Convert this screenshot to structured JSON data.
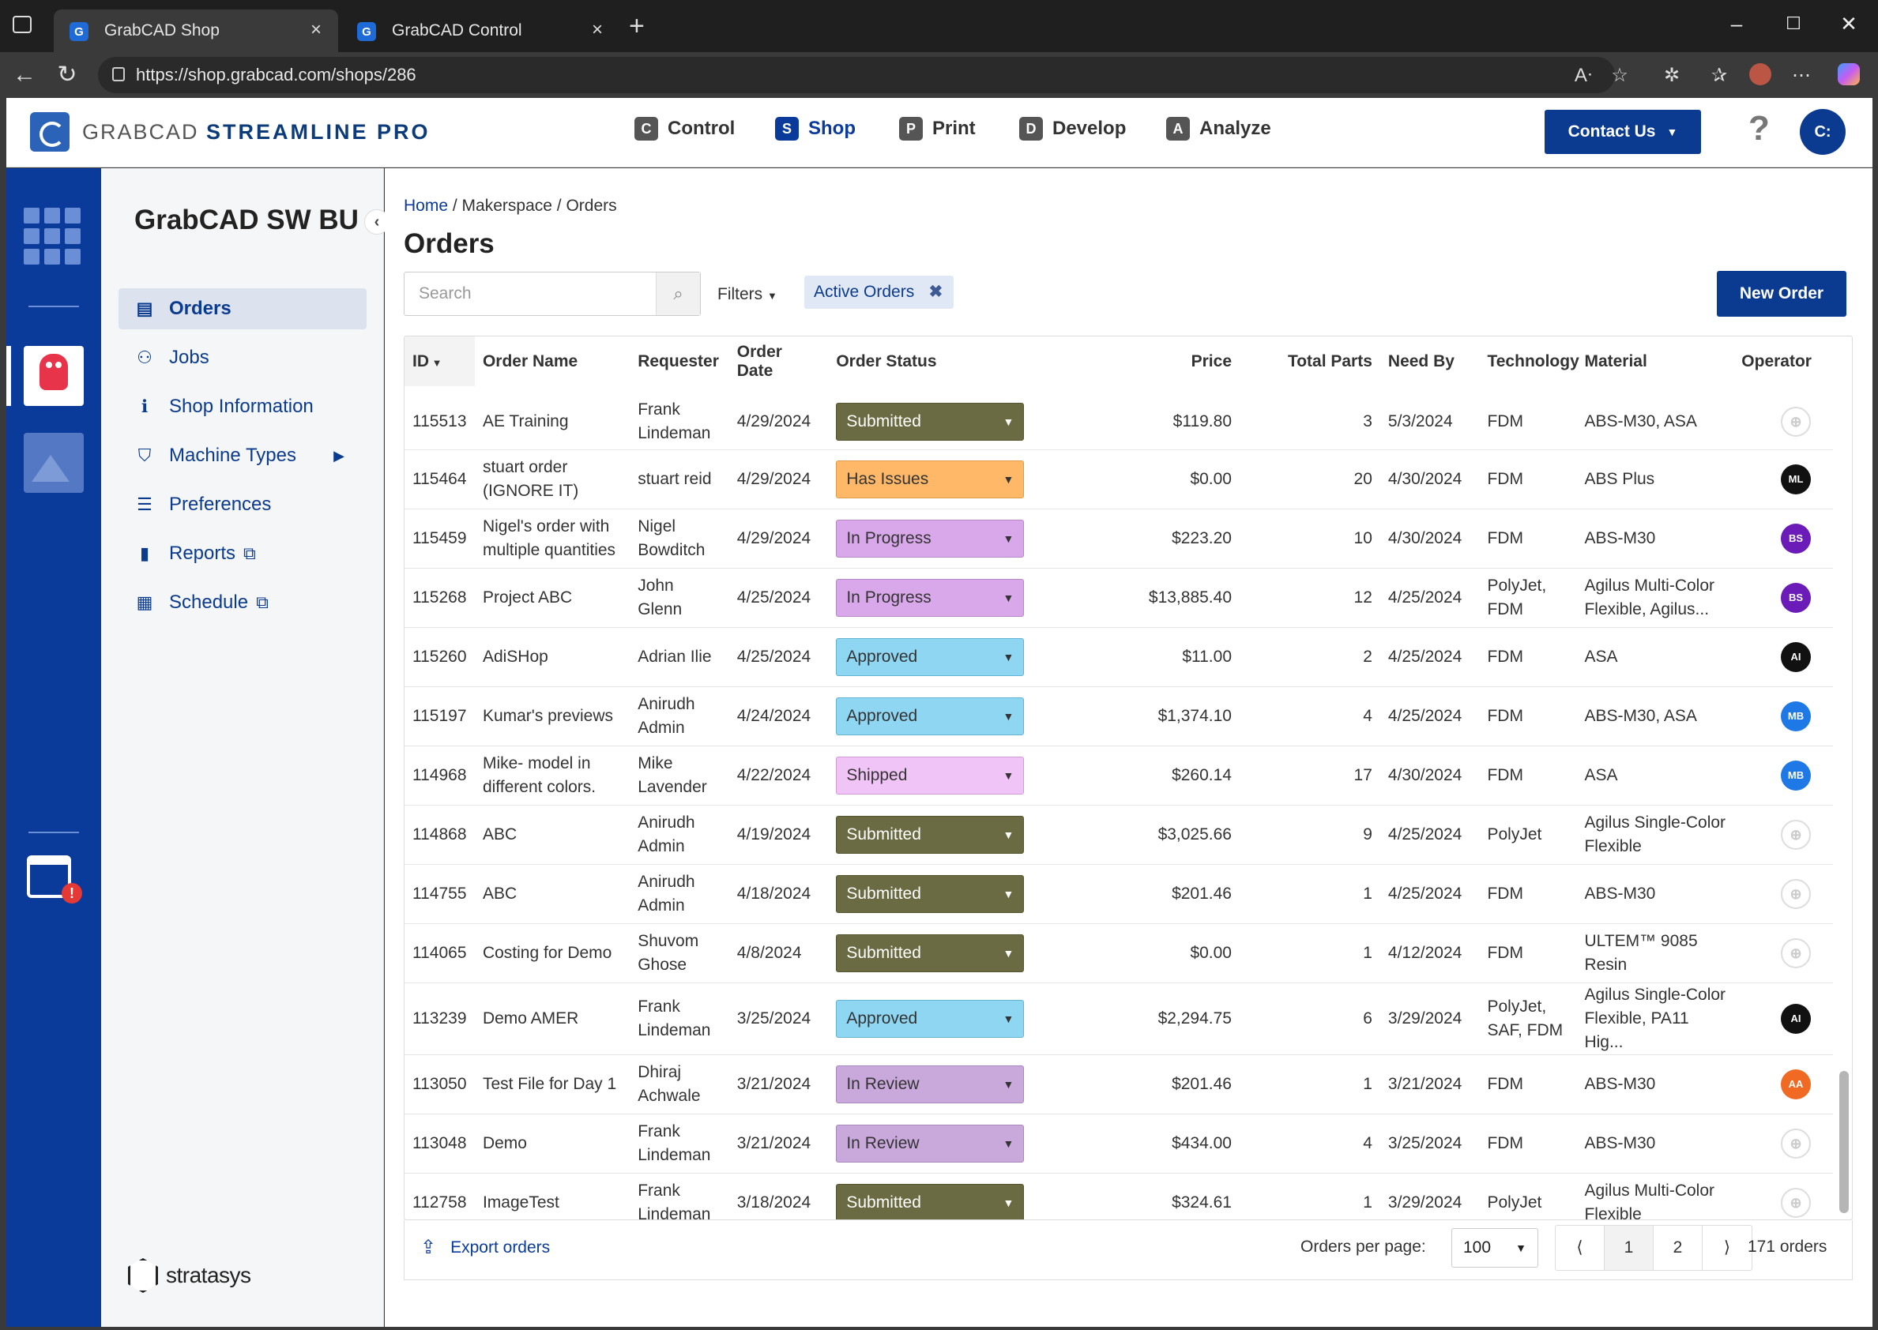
{
  "browser": {
    "tabs": [
      {
        "title": "GrabCAD Shop"
      },
      {
        "title": "GrabCAD Control"
      }
    ],
    "url": "https://shop.grabcad.com/shops/286"
  },
  "header": {
    "logo_left": "GRABCAD",
    "logo_right": "STREAMLINE PRO",
    "nav": [
      {
        "label": "Control",
        "icon": "C"
      },
      {
        "label": "Shop",
        "icon": "S"
      },
      {
        "label": "Print",
        "icon": "P"
      },
      {
        "label": "Develop",
        "icon": "D"
      },
      {
        "label": "Analyze",
        "icon": "A"
      }
    ],
    "contact_label": "Contact Us",
    "help": "?",
    "user_initials": "C:"
  },
  "sidebar": {
    "shop_name": "GrabCAD SW BU",
    "items": [
      {
        "label": "Orders"
      },
      {
        "label": "Jobs"
      },
      {
        "label": "Shop Information"
      },
      {
        "label": "Machine Types"
      },
      {
        "label": "Preferences"
      },
      {
        "label": "Reports"
      },
      {
        "label": "Schedule"
      }
    ],
    "footer_brand": "stratasys"
  },
  "main": {
    "breadcrumb": {
      "home": "Home",
      "sep1": " / ",
      "section": "Makerspace",
      "sep2": " / ",
      "current": "Orders"
    },
    "title": "Orders",
    "search_placeholder": "Search",
    "filters_label": "Filters",
    "active_filter": "Active Orders",
    "new_order_label": "New Order",
    "columns": [
      "ID",
      "Order Name",
      "Requester",
      "Order Date",
      "Order Status",
      "Price",
      "Total Parts",
      "Need By",
      "Technology",
      "Material",
      "Operator"
    ],
    "rows": [
      {
        "id": "115513",
        "name": "AE Training",
        "requester": "Frank Lindeman",
        "date": "4/29/2024",
        "status": "Submitted",
        "price": "$119.80",
        "parts": "3",
        "need_by": "5/3/2024",
        "tech": "FDM",
        "material": "ABS-M30, ASA",
        "operator": ""
      },
      {
        "id": "115464",
        "name": "stuart order (IGNORE IT)",
        "requester": "stuart reid",
        "date": "4/29/2024",
        "status": "Has Issues",
        "price": "$0.00",
        "parts": "20",
        "need_by": "4/30/2024",
        "tech": "FDM",
        "material": "ABS Plus",
        "operator": "ML"
      },
      {
        "id": "115459",
        "name": "Nigel's order with multiple quantities",
        "requester": "Nigel Bowditch",
        "date": "4/29/2024",
        "status": "In Progress",
        "price": "$223.20",
        "parts": "10",
        "need_by": "4/30/2024",
        "tech": "FDM",
        "material": "ABS-M30",
        "operator": "BS"
      },
      {
        "id": "115268",
        "name": "Project ABC",
        "requester": "John Glenn",
        "date": "4/25/2024",
        "status": "In Progress",
        "price": "$13,885.40",
        "parts": "12",
        "need_by": "4/25/2024",
        "tech": "PolyJet, FDM",
        "material": "Agilus Multi-Color Flexible, Agilus...",
        "operator": "BS"
      },
      {
        "id": "115260",
        "name": "AdiSHop",
        "requester": "Adrian Ilie",
        "date": "4/25/2024",
        "status": "Approved",
        "price": "$11.00",
        "parts": "2",
        "need_by": "4/25/2024",
        "tech": "FDM",
        "material": "ASA",
        "operator": "AI"
      },
      {
        "id": "115197",
        "name": "Kumar's previews",
        "requester": "Anirudh Admin",
        "date": "4/24/2024",
        "status": "Approved",
        "price": "$1,374.10",
        "parts": "4",
        "need_by": "4/25/2024",
        "tech": "FDM",
        "material": "ABS-M30, ASA",
        "operator": "MB"
      },
      {
        "id": "114968",
        "name": "Mike- model in different colors.",
        "requester": "Mike Lavender",
        "date": "4/22/2024",
        "status": "Shipped",
        "price": "$260.14",
        "parts": "17",
        "need_by": "4/30/2024",
        "tech": "FDM",
        "material": "ASA",
        "operator": "MB"
      },
      {
        "id": "114868",
        "name": "ABC",
        "requester": "Anirudh Admin",
        "date": "4/19/2024",
        "status": "Submitted",
        "price": "$3,025.66",
        "parts": "9",
        "need_by": "4/25/2024",
        "tech": "PolyJet",
        "material": "Agilus Single-Color Flexible",
        "operator": ""
      },
      {
        "id": "114755",
        "name": "ABC",
        "requester": "Anirudh Admin",
        "date": "4/18/2024",
        "status": "Submitted",
        "price": "$201.46",
        "parts": "1",
        "need_by": "4/25/2024",
        "tech": "FDM",
        "material": "ABS-M30",
        "operator": ""
      },
      {
        "id": "114065",
        "name": "Costing for Demo",
        "requester": "Shuvom Ghose",
        "date": "4/8/2024",
        "status": "Submitted",
        "price": "$0.00",
        "parts": "1",
        "need_by": "4/12/2024",
        "tech": "FDM",
        "material": "ULTEM™ 9085 Resin",
        "operator": ""
      },
      {
        "id": "113239",
        "name": "Demo AMER",
        "requester": "Frank Lindeman",
        "date": "3/25/2024",
        "status": "Approved",
        "price": "$2,294.75",
        "parts": "6",
        "need_by": "3/29/2024",
        "tech": "PolyJet, SAF, FDM",
        "material": "Agilus Single-Color Flexible, PA11 Hig...",
        "operator": "AI"
      },
      {
        "id": "113050",
        "name": "Test File for Day 1",
        "requester": "Dhiraj Achwale",
        "date": "3/21/2024",
        "status": "In Review",
        "price": "$201.46",
        "parts": "1",
        "need_by": "3/21/2024",
        "tech": "FDM",
        "material": "ABS-M30",
        "operator": "AA"
      },
      {
        "id": "113048",
        "name": "Demo",
        "requester": "Frank Lindeman",
        "date": "3/21/2024",
        "status": "In Review",
        "price": "$434.00",
        "parts": "4",
        "need_by": "3/25/2024",
        "tech": "FDM",
        "material": "ABS-M30",
        "operator": ""
      },
      {
        "id": "112758",
        "name": "ImageTest",
        "requester": "Frank Lindeman",
        "date": "3/18/2024",
        "status": "Submitted",
        "price": "$324.61",
        "parts": "1",
        "need_by": "3/29/2024",
        "tech": "PolyJet",
        "material": "Agilus Multi-Color Flexible",
        "operator": ""
      }
    ],
    "footer": {
      "export_label": "Export orders",
      "per_page_label": "Orders per page:",
      "per_page_value": "100",
      "pages": [
        "1",
        "2"
      ],
      "total": "171 orders"
    }
  },
  "colors": {
    "brand_blue": "#0b3a91",
    "rail_blue": "#0a3a9a",
    "submitted": "#6a6b42",
    "has_issues": "#ffb868",
    "in_progress": "#d9a8ea",
    "approved": "#8fd6f2",
    "shipped": "#f1c4f7",
    "in_review": "#c9a9dc"
  }
}
